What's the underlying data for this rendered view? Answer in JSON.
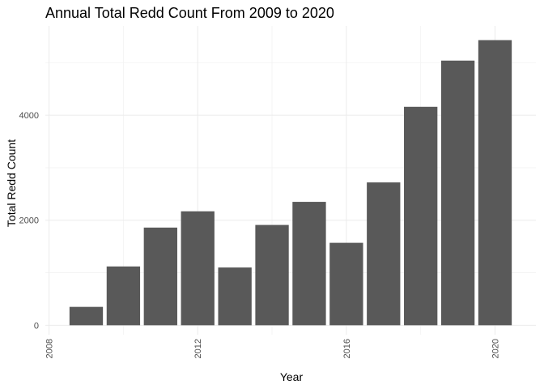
{
  "chart_data": {
    "type": "bar",
    "title": "Annual Total Redd Count From 2009 to 2020",
    "xlabel": "Year",
    "ylabel": "Total Redd Count",
    "categories": [
      2009,
      2010,
      2011,
      2012,
      2013,
      2014,
      2015,
      2016,
      2017,
      2018,
      2019,
      2020
    ],
    "values": [
      350,
      1120,
      1860,
      2170,
      1100,
      1910,
      2350,
      1570,
      2720,
      4160,
      5040,
      5430
    ],
    "xlim": [
      2007.9,
      2021.1
    ],
    "ylim": [
      -180,
      5700
    ],
    "xticks": [
      2008,
      2012,
      2016,
      2020
    ],
    "yticks": [
      0,
      2000,
      4000
    ],
    "bar_color": "#595959",
    "grid": true,
    "legend": "none"
  }
}
